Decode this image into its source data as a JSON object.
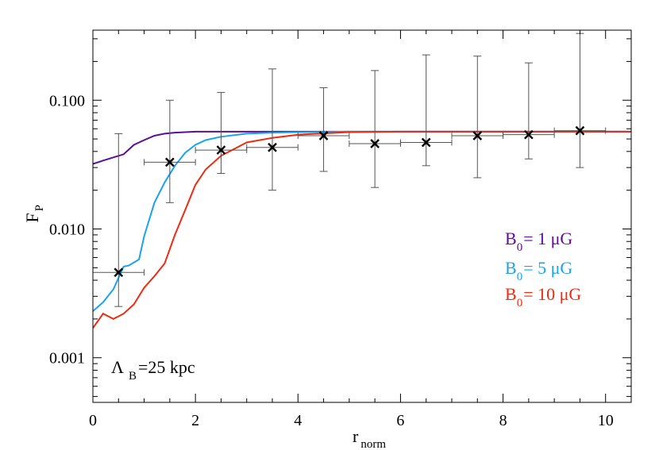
{
  "chart_data": {
    "type": "line",
    "title": "",
    "xlabel": {
      "main": "r",
      "sub": "norm"
    },
    "ylabel": {
      "main": "F",
      "sub": "P"
    },
    "xlim": [
      0,
      10.5
    ],
    "ylim": [
      0.00045,
      0.35
    ],
    "yscale": "log",
    "xticks": [
      0,
      2,
      4,
      6,
      8,
      10
    ],
    "xtick_labels": [
      "0",
      "2",
      "4",
      "6",
      "8",
      "10"
    ],
    "yticks": [
      0.001,
      0.01,
      0.1
    ],
    "ytick_labels": [
      "0.001",
      "0.010",
      "0.100"
    ],
    "grid": false,
    "annotation": {
      "main": "Λ",
      "sub": "B",
      "rest": "=25 kpc"
    },
    "legend_position": "right, middle",
    "series": [
      {
        "name": "B0 = 1 μG",
        "legend": {
          "main": "B",
          "sub": "0",
          "rest": "= 1 μG"
        },
        "color": "#5a0f96",
        "x": [
          0,
          0.2,
          0.4,
          0.6,
          0.8,
          1.0,
          1.2,
          1.4,
          1.6,
          1.8,
          2.0,
          2.5,
          3,
          4,
          6,
          8,
          10.5
        ],
        "y": [
          0.032,
          0.034,
          0.036,
          0.038,
          0.045,
          0.049,
          0.053,
          0.055,
          0.056,
          0.0565,
          0.057,
          0.057,
          0.057,
          0.057,
          0.057,
          0.057,
          0.057
        ]
      },
      {
        "name": "B0 = 5 μG",
        "legend": {
          "main": "B",
          "sub": "0",
          "rest": "= 5 μG"
        },
        "color": "#1aa3ec",
        "x": [
          0,
          0.2,
          0.4,
          0.6,
          0.7,
          0.9,
          1.0,
          1.2,
          1.4,
          1.6,
          1.8,
          2.0,
          2.2,
          2.5,
          3,
          3.5,
          4,
          5,
          6,
          8,
          10.5
        ],
        "y": [
          0.0023,
          0.0027,
          0.0034,
          0.0051,
          0.0052,
          0.0058,
          0.0088,
          0.016,
          0.023,
          0.031,
          0.039,
          0.045,
          0.049,
          0.052,
          0.055,
          0.056,
          0.0565,
          0.057,
          0.057,
          0.057,
          0.057
        ]
      },
      {
        "name": "B0 = 10 μG",
        "legend": {
          "main": "B",
          "sub": "0",
          "rest": "= 10 μG"
        },
        "color": "#ee2a10",
        "x": [
          0,
          0.2,
          0.4,
          0.6,
          0.8,
          1.0,
          1.2,
          1.4,
          1.6,
          1.8,
          2.0,
          2.2,
          2.5,
          3,
          3.5,
          4,
          5,
          6,
          8,
          10.5
        ],
        "y": [
          0.0017,
          0.0022,
          0.002,
          0.0022,
          0.0026,
          0.0035,
          0.0043,
          0.0054,
          0.009,
          0.014,
          0.022,
          0.029,
          0.037,
          0.047,
          0.051,
          0.054,
          0.0565,
          0.057,
          0.057,
          0.057
        ]
      },
      {
        "name": "",
        "type": "scatter",
        "marker": "x",
        "color": "#000000",
        "x": [
          0.5,
          1.5,
          2.5,
          3.5,
          4.5,
          5.5,
          6.5,
          7.5,
          8.5,
          9.5
        ],
        "y": [
          0.0046,
          0.033,
          0.041,
          0.043,
          0.053,
          0.046,
          0.047,
          0.053,
          0.054,
          0.058
        ],
        "xerr": [
          0.5,
          0.5,
          0.5,
          0.5,
          0.5,
          0.5,
          0.5,
          0.5,
          0.5,
          0.5
        ],
        "ylow": [
          0.0025,
          0.016,
          0.027,
          0.02,
          0.028,
          0.021,
          0.031,
          0.025,
          0.035,
          0.03
        ],
        "yhigh": [
          0.055,
          0.1,
          0.115,
          0.175,
          0.125,
          0.17,
          0.225,
          0.22,
          0.195,
          0.33
        ]
      }
    ]
  }
}
